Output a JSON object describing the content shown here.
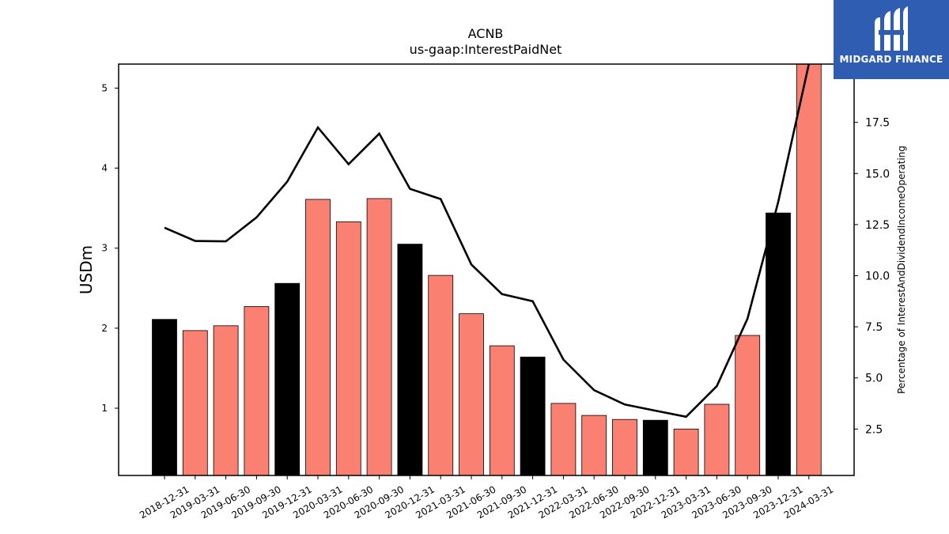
{
  "brand": {
    "name": "MIDGARD FINANCE",
    "bg_color": "#2f5db1"
  },
  "chart_data": {
    "type": "bar",
    "title": "ACNB",
    "subtitle": "us-gaap:InterestPaidNet",
    "ylabel": "USDm",
    "y2label": "Percentage of InterestAndDividendIncomeOperating",
    "ylim": [
      0.16,
      5.3
    ],
    "y2lim": [
      0.23,
      20.35
    ],
    "yticks": [
      1,
      2,
      3,
      4,
      5
    ],
    "y2ticks": [
      2.5,
      5.0,
      7.5,
      10.0,
      12.5,
      15.0,
      17.5
    ],
    "categories": [
      "2018-12-31",
      "2019-03-31",
      "2019-06-30",
      "2019-09-30",
      "2019-12-31",
      "2020-03-31",
      "2020-06-30",
      "2020-09-30",
      "2020-12-31",
      "2021-03-31",
      "2021-06-30",
      "2021-09-30",
      "2021-12-31",
      "2022-03-31",
      "2022-06-30",
      "2022-09-30",
      "2022-12-31",
      "2023-03-31",
      "2023-06-30",
      "2023-09-30",
      "2023-12-31",
      "2024-03-31"
    ],
    "series": [
      {
        "kind": "bar",
        "values": [
          2.11,
          1.97,
          2.03,
          2.27,
          2.56,
          3.61,
          3.33,
          3.62,
          3.05,
          2.66,
          2.18,
          1.78,
          1.64,
          1.06,
          0.91,
          0.86,
          0.85,
          0.74,
          1.05,
          1.91,
          3.44,
          5.3
        ],
        "colors": [
          "#000000",
          "#fa8072",
          "#fa8072",
          "#fa8072",
          "#000000",
          "#fa8072",
          "#fa8072",
          "#fa8072",
          "#000000",
          "#fa8072",
          "#fa8072",
          "#fa8072",
          "#000000",
          "#fa8072",
          "#fa8072",
          "#fa8072",
          "#000000",
          "#fa8072",
          "#fa8072",
          "#fa8072",
          "#000000",
          "#fa8072"
        ]
      },
      {
        "kind": "line",
        "axis": "right",
        "color": "#000000",
        "values": [
          12.35,
          11.7,
          11.68,
          12.85,
          14.6,
          17.25,
          15.45,
          16.95,
          14.25,
          13.75,
          10.55,
          9.1,
          8.75,
          5.9,
          4.4,
          3.7,
          3.4,
          3.1,
          4.6,
          7.9,
          13.6,
          20.35
        ]
      }
    ],
    "grid": false,
    "legend": "none"
  }
}
